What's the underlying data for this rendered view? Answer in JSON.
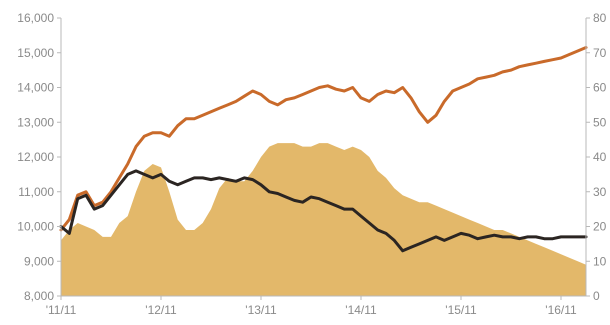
{
  "chart_data": {
    "type": "line",
    "title": "",
    "xlabel": "",
    "ylabel_left": "",
    "ylabel_right": "",
    "grid": false,
    "legend": "none",
    "x_ticks": [
      "'11/11",
      "'12/11",
      "'13/11",
      "'14/11",
      "'15/11",
      "'16/11"
    ],
    "y_left": {
      "ylim": [
        8000,
        16000
      ],
      "ticks": [
        "8,000",
        "9,000",
        "10,000",
        "11,000",
        "12,000",
        "13,000",
        "14,000",
        "15,000",
        "16,000"
      ]
    },
    "y_right": {
      "ylim": [
        0,
        80
      ],
      "ticks": [
        "0",
        "10",
        "20",
        "30",
        "40",
        "50",
        "60",
        "70",
        "80"
      ]
    },
    "x": [
      "2011-11",
      "2011-12",
      "2012-01",
      "2012-02",
      "2012-03",
      "2012-04",
      "2012-05",
      "2012-06",
      "2012-07",
      "2012-08",
      "2012-09",
      "2012-10",
      "2012-11",
      "2012-12",
      "2013-01",
      "2013-02",
      "2013-03",
      "2013-04",
      "2013-05",
      "2013-06",
      "2013-07",
      "2013-08",
      "2013-09",
      "2013-10",
      "2013-11",
      "2013-12",
      "2014-01",
      "2014-02",
      "2014-03",
      "2014-04",
      "2014-05",
      "2014-06",
      "2014-07",
      "2014-08",
      "2014-09",
      "2014-10",
      "2014-11",
      "2014-12",
      "2015-01",
      "2015-02",
      "2015-03",
      "2015-04",
      "2015-05",
      "2015-06",
      "2015-07",
      "2015-08",
      "2015-09",
      "2015-10",
      "2015-11",
      "2015-12",
      "2016-01",
      "2016-02",
      "2016-03",
      "2016-04",
      "2016-05",
      "2016-06",
      "2016-07",
      "2016-08",
      "2016-09",
      "2016-10",
      "2016-11",
      "2016-12",
      "2017-01",
      "2017-02"
    ],
    "series": [
      {
        "axis": "right",
        "style": "area",
        "color": "#e3b86a",
        "values": [
          16,
          19,
          21,
          20,
          19,
          17,
          17,
          21,
          23,
          30,
          36,
          38,
          37,
          30,
          22,
          19,
          19,
          21,
          25,
          31,
          34,
          33,
          33,
          36,
          40,
          43,
          44,
          44,
          44,
          43,
          43,
          44,
          44,
          43,
          42,
          43,
          42,
          40,
          36,
          34,
          31,
          29,
          28,
          27,
          27,
          26,
          25,
          24,
          23,
          22,
          21,
          20,
          19,
          19,
          18,
          17,
          16,
          15,
          14,
          13,
          12,
          11,
          10,
          9
        ]
      },
      {
        "axis": "left",
        "style": "line",
        "color": "#c96a2a",
        "values": [
          9900,
          10200,
          10900,
          11000,
          10600,
          10700,
          11000,
          11400,
          11800,
          12300,
          12600,
          12700,
          12700,
          12600,
          12900,
          13100,
          13100,
          13200,
          13300,
          13400,
          13500,
          13600,
          13750,
          13900,
          13800,
          13600,
          13500,
          13650,
          13700,
          13800,
          13900,
          14000,
          14050,
          13950,
          13900,
          14000,
          13700,
          13600,
          13800,
          13900,
          13850,
          14000,
          13700,
          13300,
          13000,
          13200,
          13600,
          13900,
          14000,
          14100,
          14250,
          14300,
          14350,
          14450,
          14500,
          14600,
          14650,
          14700,
          14750,
          14800,
          14850,
          14950,
          15050,
          15150
        ]
      },
      {
        "axis": "left",
        "style": "line",
        "color": "#2b2522",
        "values": [
          10000,
          9800,
          10800,
          10900,
          10500,
          10600,
          10900,
          11200,
          11500,
          11600,
          11500,
          11400,
          11500,
          11300,
          11200,
          11300,
          11400,
          11400,
          11350,
          11400,
          11350,
          11300,
          11400,
          11350,
          11200,
          11000,
          10950,
          10850,
          10750,
          10700,
          10850,
          10800,
          10700,
          10600,
          10500,
          10500,
          10300,
          10100,
          9900,
          9800,
          9600,
          9300,
          9400,
          9500,
          9600,
          9700,
          9600,
          9700,
          9800,
          9750,
          9650,
          9700,
          9750,
          9700,
          9700,
          9650,
          9700,
          9700,
          9650,
          9650,
          9700,
          9700,
          9700,
          9700
        ]
      }
    ]
  }
}
